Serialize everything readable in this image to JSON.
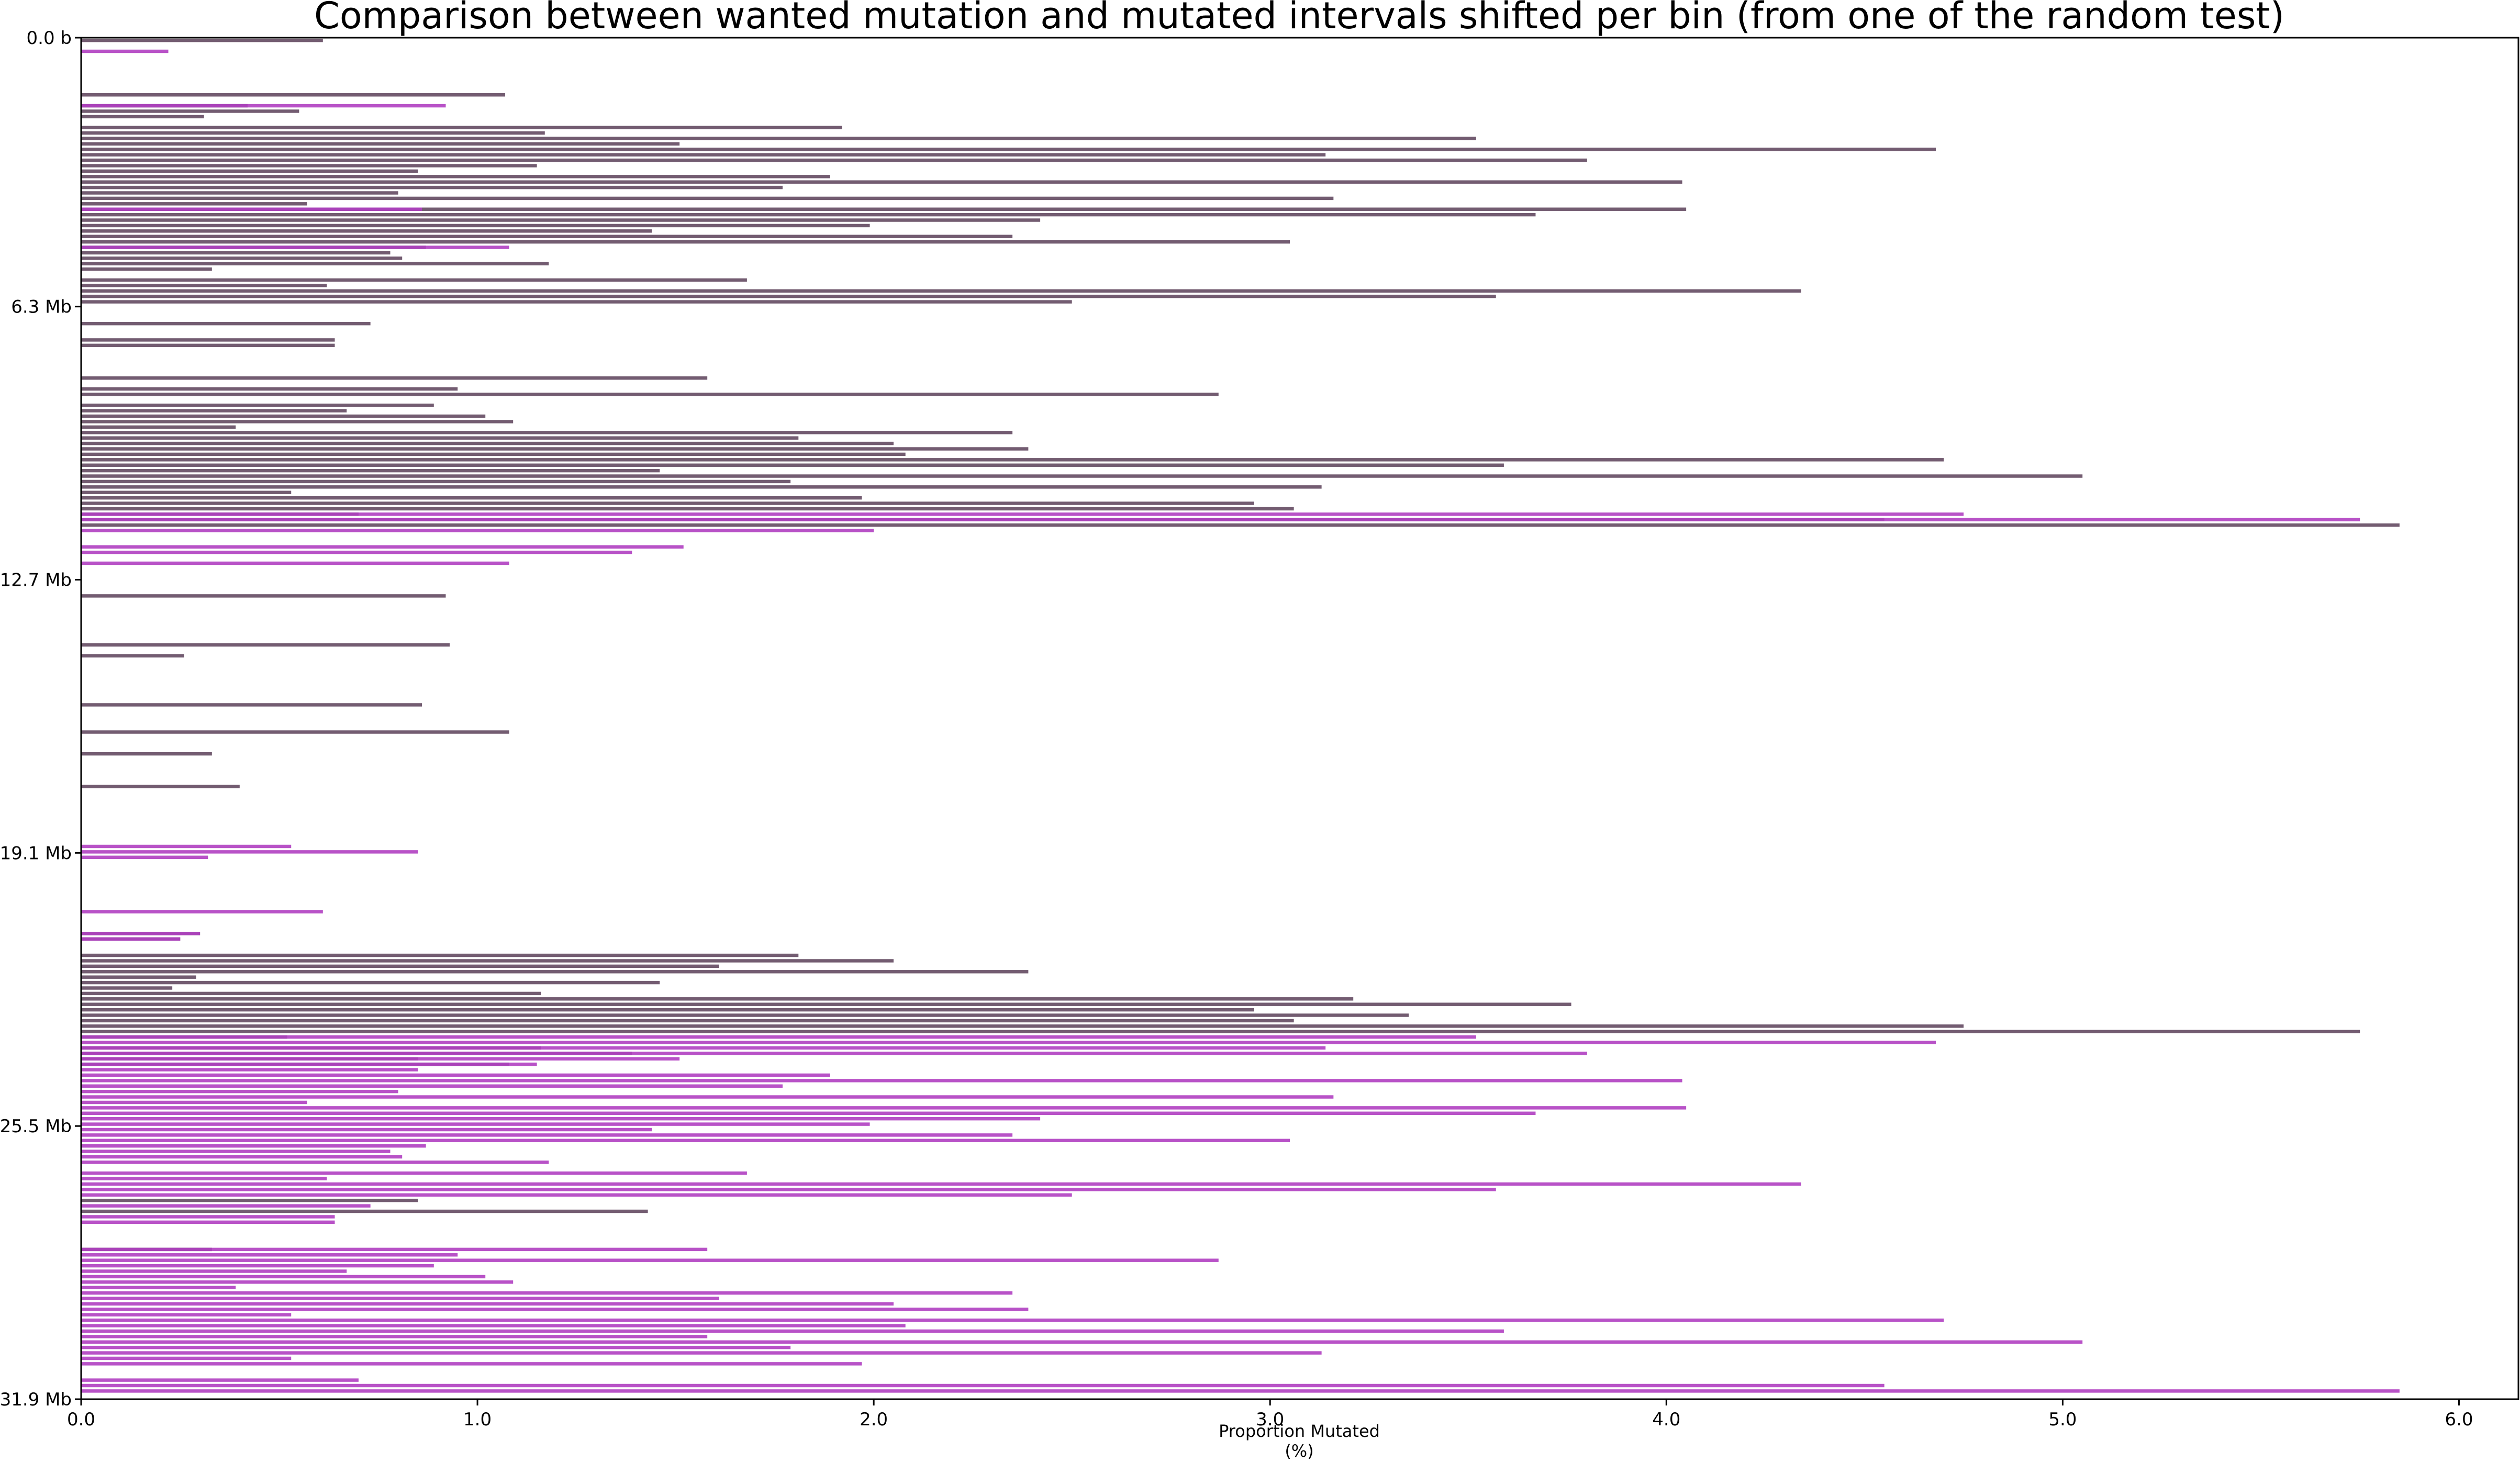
{
  "chart_data": {
    "type": "bar",
    "orientation": "horizontal",
    "title": "Comparison between wanted mutation and  mutated intervals shifted per bin (from one of the random test)",
    "xlabel": "Proportion Mutated\n(%)",
    "ylabel": "",
    "xlim": [
      0,
      6.15
    ],
    "xticks": [
      0.0,
      1.0,
      2.0,
      3.0,
      4.0,
      5.0,
      6.0
    ],
    "xtick_labels": [
      "0.0",
      "1.0",
      "2.0",
      "3.0",
      "4.0",
      "5.0",
      "6.0"
    ],
    "ylim_mb": [
      0,
      31.9
    ],
    "yticks_mb": [
      0,
      6.3,
      12.7,
      19.1,
      25.5,
      31.9
    ],
    "ytick_labels": [
      "0.0 b",
      "6.3 Mb",
      "12.7 Mb",
      "19.1 Mb",
      "25.5 Mb",
      "31.9 Mb"
    ],
    "bin_count": 250,
    "series": [
      {
        "color": "#5a3f58",
        "opacity": 0.85,
        "bins": [
          [
            0,
            0.61
          ],
          [
            10,
            1.07
          ],
          [
            12,
            0.42
          ],
          [
            13,
            0.55
          ],
          [
            14,
            0.31
          ],
          [
            16,
            1.92
          ],
          [
            17,
            1.17
          ],
          [
            18,
            3.52
          ],
          [
            19,
            1.51
          ],
          [
            20,
            4.68
          ],
          [
            21,
            3.14
          ],
          [
            22,
            3.8
          ],
          [
            23,
            1.15
          ],
          [
            24,
            0.85
          ],
          [
            25,
            1.89
          ],
          [
            26,
            4.04
          ],
          [
            27,
            1.77
          ],
          [
            28,
            0.8
          ],
          [
            29,
            3.16
          ],
          [
            30,
            0.57
          ],
          [
            31,
            4.05
          ],
          [
            32,
            3.67
          ],
          [
            33,
            2.42
          ],
          [
            34,
            1.99
          ],
          [
            35,
            1.44
          ],
          [
            36,
            2.35
          ],
          [
            37,
            3.05
          ],
          [
            38,
            0.87
          ],
          [
            39,
            0.78
          ],
          [
            40,
            0.81
          ],
          [
            41,
            1.18
          ],
          [
            42,
            0.33
          ],
          [
            44,
            1.68
          ],
          [
            45,
            0.62
          ],
          [
            46,
            4.34
          ],
          [
            47,
            3.57
          ],
          [
            48,
            2.5
          ],
          [
            52,
            0.73
          ],
          [
            55,
            0.64
          ],
          [
            56,
            0.64
          ],
          [
            62,
            1.58
          ],
          [
            64,
            0.95
          ],
          [
            65,
            2.87
          ],
          [
            67,
            0.89
          ],
          [
            68,
            0.67
          ],
          [
            69,
            1.02
          ],
          [
            70,
            1.09
          ],
          [
            71,
            0.39
          ],
          [
            72,
            2.35
          ],
          [
            73,
            1.81
          ],
          [
            74,
            2.05
          ],
          [
            75,
            2.39
          ],
          [
            76,
            2.08
          ],
          [
            77,
            4.7
          ],
          [
            78,
            3.59
          ],
          [
            79,
            1.46
          ],
          [
            80,
            5.05
          ],
          [
            81,
            1.79
          ],
          [
            82,
            3.13
          ],
          [
            83,
            0.53
          ],
          [
            84,
            1.97
          ],
          [
            85,
            2.96
          ],
          [
            86,
            3.06
          ],
          [
            87,
            0.7
          ],
          [
            88,
            4.55
          ],
          [
            89,
            5.85
          ],
          [
            102,
            0.92
          ],
          [
            111,
            0.93
          ],
          [
            113,
            0.26
          ],
          [
            122,
            0.86
          ],
          [
            127,
            1.08
          ],
          [
            131,
            0.33
          ],
          [
            137,
            0.4
          ],
          [
            164,
            0.3
          ],
          [
            165,
            0.25
          ],
          [
            168,
            1.81
          ],
          [
            169,
            2.05
          ],
          [
            170,
            1.61
          ],
          [
            171,
            2.39
          ],
          [
            172,
            0.29
          ],
          [
            173,
            1.46
          ],
          [
            174,
            0.23
          ],
          [
            175,
            1.16
          ],
          [
            176,
            3.21
          ],
          [
            177,
            3.76
          ],
          [
            178,
            2.96
          ],
          [
            179,
            3.35
          ],
          [
            180,
            3.06
          ],
          [
            181,
            4.75
          ],
          [
            182,
            5.75
          ],
          [
            183,
            0.52
          ],
          [
            185,
            1.16
          ],
          [
            186,
            1.39
          ],
          [
            187,
            0.85
          ],
          [
            188,
            1.08
          ],
          [
            213,
            0.85
          ],
          [
            215,
            1.43
          ],
          [
            222,
            0.33
          ]
        ]
      },
      {
        "color": "#b03fc1",
        "opacity": 0.9,
        "bins": [
          [
            2,
            0.22
          ],
          [
            12,
            0.92
          ],
          [
            31,
            0.86
          ],
          [
            38,
            1.08
          ],
          [
            87,
            4.75
          ],
          [
            88,
            5.75
          ],
          [
            90,
            2.0
          ],
          [
            93,
            1.52
          ],
          [
            94,
            1.39
          ],
          [
            96,
            1.08
          ],
          [
            148,
            0.53
          ],
          [
            149,
            0.85
          ],
          [
            150,
            0.32
          ],
          [
            160,
            0.61
          ],
          [
            164,
            0.3
          ],
          [
            165,
            0.25
          ],
          [
            183,
            3.52
          ],
          [
            184,
            4.68
          ],
          [
            185,
            3.14
          ],
          [
            186,
            3.8
          ],
          [
            187,
            1.51
          ],
          [
            188,
            1.15
          ],
          [
            189,
            0.85
          ],
          [
            190,
            1.89
          ],
          [
            191,
            4.04
          ],
          [
            192,
            1.77
          ],
          [
            193,
            0.8
          ],
          [
            194,
            3.16
          ],
          [
            195,
            0.57
          ],
          [
            196,
            4.05
          ],
          [
            197,
            3.67
          ],
          [
            198,
            2.42
          ],
          [
            199,
            1.99
          ],
          [
            200,
            1.44
          ],
          [
            201,
            2.35
          ],
          [
            202,
            3.05
          ],
          [
            203,
            0.87
          ],
          [
            204,
            0.78
          ],
          [
            205,
            0.81
          ],
          [
            206,
            1.18
          ],
          [
            208,
            1.68
          ],
          [
            209,
            0.62
          ],
          [
            210,
            4.34
          ],
          [
            211,
            3.57
          ],
          [
            212,
            2.5
          ],
          [
            214,
            0.73
          ],
          [
            216,
            0.64
          ],
          [
            217,
            0.64
          ],
          [
            222,
            1.58
          ],
          [
            223,
            0.95
          ],
          [
            224,
            2.87
          ],
          [
            225,
            0.89
          ],
          [
            226,
            0.67
          ],
          [
            227,
            1.02
          ],
          [
            228,
            1.09
          ],
          [
            229,
            0.39
          ],
          [
            230,
            2.35
          ],
          [
            231,
            1.61
          ],
          [
            232,
            2.05
          ],
          [
            233,
            2.39
          ],
          [
            234,
            0.53
          ],
          [
            235,
            4.7
          ],
          [
            236,
            2.08
          ],
          [
            237,
            3.59
          ],
          [
            238,
            1.58
          ],
          [
            239,
            5.05
          ],
          [
            240,
            1.79
          ],
          [
            241,
            3.13
          ],
          [
            242,
            0.53
          ],
          [
            243,
            1.97
          ],
          [
            246,
            0.7
          ],
          [
            247,
            4.55
          ],
          [
            248,
            5.85
          ]
        ]
      }
    ]
  }
}
